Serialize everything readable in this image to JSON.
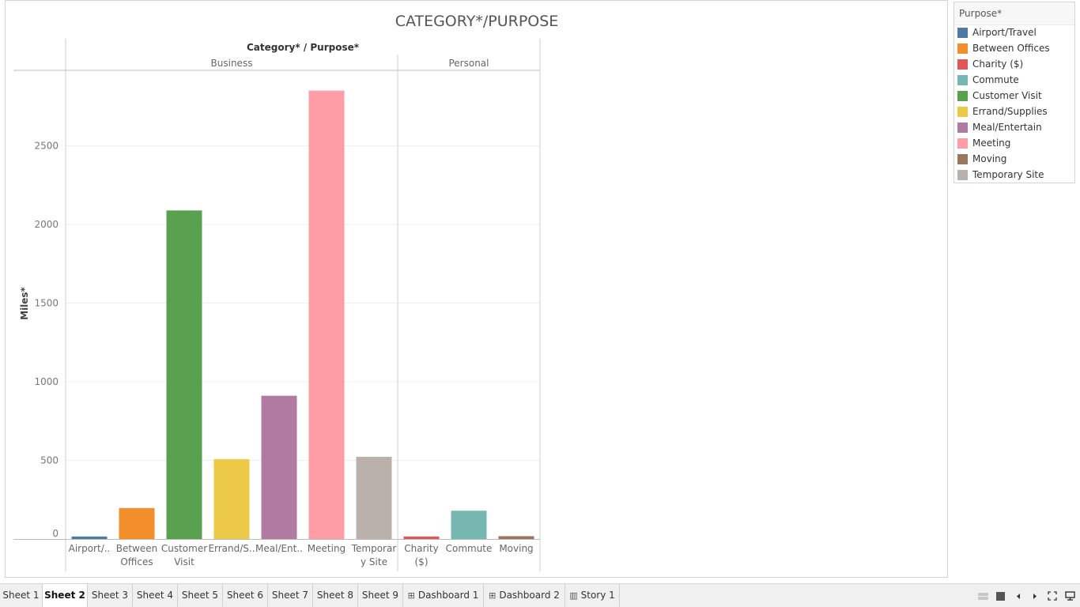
{
  "chart_data": {
    "type": "bar",
    "title": "CATEGORY*/PURPOSE",
    "header_label": "Category* / Purpose*",
    "ylabel": "Miles*",
    "ylim": [
      0,
      2900
    ],
    "yticks": [
      0,
      500,
      1000,
      1500,
      2000,
      2500
    ],
    "ytick_labels": [
      "0",
      "500",
      "1000",
      "1500",
      "2000",
      "2500"
    ],
    "groups": [
      {
        "name": "Business",
        "bars": [
          {
            "purpose": "Airport/Travel",
            "label_lines": [
              "Airport/.."
            ],
            "value": 16,
            "color": "#4e79a7"
          },
          {
            "purpose": "Between Offices",
            "label_lines": [
              "Between",
              "Offices"
            ],
            "value": 197,
            "color": "#f28e2b"
          },
          {
            "purpose": "Customer Visit",
            "label_lines": [
              "Customer",
              "Visit"
            ],
            "value": 2089,
            "color": "#59a14f"
          },
          {
            "purpose": "Errand/Supplies",
            "label_lines": [
              "Errand/S.."
            ],
            "value": 508,
            "color": "#edc948"
          },
          {
            "purpose": "Meal/Entertain",
            "label_lines": [
              "Meal/Ent.."
            ],
            "value": 911,
            "color": "#b07aa1"
          },
          {
            "purpose": "Meeting",
            "label_lines": [
              "Meeting"
            ],
            "value": 2851,
            "color": "#ff9da7"
          },
          {
            "purpose": "Temporary Site",
            "label_lines": [
              "Temporar",
              "y Site"
            ],
            "value": 523,
            "color": "#bab0ac"
          }
        ]
      },
      {
        "name": "Personal",
        "bars": [
          {
            "purpose": "Charity ($)",
            "label_lines": [
              "Charity",
              "($)"
            ],
            "value": 16,
            "color": "#e15759"
          },
          {
            "purpose": "Commute",
            "label_lines": [
              "Commute"
            ],
            "value": 180,
            "color": "#76b7b2"
          },
          {
            "purpose": "Moving",
            "label_lines": [
              "Moving"
            ],
            "value": 18,
            "color": "#9c755f"
          }
        ]
      }
    ],
    "legend": {
      "title": "Purpose*",
      "entries": [
        {
          "label": "Airport/Travel",
          "color": "#4e79a7"
        },
        {
          "label": "Between Offices",
          "color": "#f28e2b"
        },
        {
          "label": "Charity ($)",
          "color": "#e15759"
        },
        {
          "label": "Commute",
          "color": "#76b7b2"
        },
        {
          "label": "Customer Visit",
          "color": "#59a14f"
        },
        {
          "label": "Errand/Supplies",
          "color": "#edc948"
        },
        {
          "label": "Meal/Entertain",
          "color": "#b07aa1"
        },
        {
          "label": "Meeting",
          "color": "#ff9da7"
        },
        {
          "label": "Moving",
          "color": "#9c755f"
        },
        {
          "label": "Temporary Site",
          "color": "#bab0ac"
        }
      ]
    }
  },
  "tabs": [
    {
      "label": "Sheet 1",
      "icon": "",
      "active": false
    },
    {
      "label": "Sheet 2",
      "icon": "",
      "active": true
    },
    {
      "label": "Sheet 3",
      "icon": "",
      "active": false
    },
    {
      "label": "Sheet 4",
      "icon": "",
      "active": false
    },
    {
      "label": "Sheet 5",
      "icon": "",
      "active": false
    },
    {
      "label": "Sheet 6",
      "icon": "",
      "active": false
    },
    {
      "label": "Sheet 7",
      "icon": "",
      "active": false
    },
    {
      "label": "Sheet 8",
      "icon": "",
      "active": false
    },
    {
      "label": "Sheet 9",
      "icon": "",
      "active": false
    },
    {
      "label": "Dashboard 1",
      "icon": "dashboard-icon",
      "active": false
    },
    {
      "label": "Dashboard 2",
      "icon": "dashboard-icon",
      "active": false
    },
    {
      "label": "Story 1",
      "icon": "story-icon",
      "active": false
    }
  ],
  "controls": [
    "show-filmstrip-icon",
    "show-tabs-icon",
    "prev-sheet-icon",
    "next-sheet-icon",
    "fullscreen-icon",
    "presentation-mode-icon"
  ]
}
